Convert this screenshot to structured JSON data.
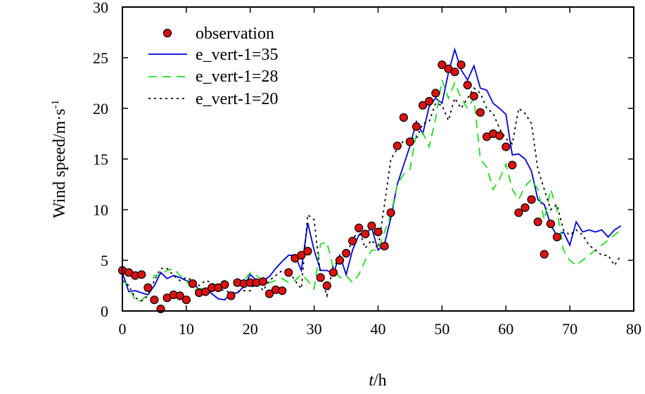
{
  "chart_data": {
    "type": "line",
    "title": "",
    "xlabel_italic": "t",
    "xlabel_unit": "/h",
    "ylabel": "Wind speed/m·s",
    "ylabel_sup": "-1",
    "xlim": [
      0,
      80
    ],
    "ylim": [
      0,
      30
    ],
    "xticks": [
      "0",
      "10",
      "20",
      "30",
      "40",
      "50",
      "60",
      "70",
      "80"
    ],
    "yticks": [
      "0",
      "5",
      "10",
      "15",
      "20",
      "25",
      "30"
    ],
    "grid": false,
    "legend_position": "top-left",
    "colors": {
      "observation_fill": "#dd1111",
      "observation_edge": "#000000",
      "series1": "#0000dd",
      "series2": "#22dd22",
      "series3": "#000000"
    },
    "observation": {
      "name": "observation",
      "x": [
        0,
        1,
        2,
        3,
        4,
        5,
        6,
        7,
        8,
        9,
        10,
        11,
        12,
        13,
        14,
        15,
        16,
        17,
        18,
        19,
        20,
        21,
        22,
        23,
        24,
        25,
        26,
        27,
        28,
        29,
        30,
        31,
        32,
        33,
        34,
        35,
        36,
        37,
        38,
        39,
        40,
        41,
        42,
        43,
        44,
        45,
        46,
        47,
        48,
        49,
        50,
        51,
        52,
        53,
        54,
        55,
        56,
        57,
        58,
        59,
        60,
        61,
        62,
        63,
        64,
        65,
        66,
        67,
        68
      ],
      "y": [
        4.0,
        3.8,
        3.5,
        3.6,
        2.3,
        1.1,
        0.2,
        1.3,
        1.6,
        1.5,
        1.1,
        2.7,
        1.8,
        1.9,
        2.3,
        2.3,
        2.6,
        1.5,
        2.8,
        2.7,
        2.8,
        2.8,
        2.9,
        1.7,
        2.1,
        2.0,
        3.8,
        5.2,
        5.5,
        5.9,
        null,
        3.3,
        2.5,
        3.8,
        5.0,
        5.7,
        6.9,
        8.2,
        7.6,
        8.4,
        7.8,
        6.4,
        9.7,
        16.3,
        19.1,
        16.7,
        18.2,
        20.3,
        20.7,
        21.5,
        24.3,
        23.9,
        23.6,
        24.3,
        22.3,
        21.2,
        19.6,
        17.2,
        17.5,
        17.3,
        16.2,
        14.4,
        9.7,
        10.2,
        11.0,
        8.8,
        5.6,
        8.6,
        7.3
      ]
    },
    "series": [
      {
        "name": "e_vert-1=35",
        "style": "solid",
        "x": [
          0,
          1,
          2,
          3,
          4,
          5,
          6,
          7,
          8,
          9,
          10,
          11,
          12,
          13,
          14,
          15,
          16,
          17,
          18,
          19,
          20,
          21,
          22,
          23,
          24,
          25,
          26,
          27,
          28,
          29,
          30,
          31,
          32,
          33,
          34,
          35,
          36,
          37,
          38,
          39,
          40,
          41,
          42,
          43,
          44,
          45,
          46,
          47,
          48,
          49,
          50,
          51,
          52,
          53,
          54,
          55,
          56,
          57,
          58,
          59,
          60,
          61,
          62,
          63,
          64,
          65,
          66,
          67,
          68,
          69,
          70,
          71,
          72,
          73,
          74,
          75,
          76,
          77,
          78
        ],
        "y": [
          3.8,
          1.9,
          2.0,
          1.8,
          1.6,
          2.5,
          3.8,
          3.2,
          3.5,
          3.3,
          3.0,
          2.8,
          2.1,
          2.2,
          1.7,
          1.2,
          1.1,
          1.7,
          1.8,
          2.4,
          3.6,
          3.0,
          3.0,
          3.4,
          4.2,
          4.9,
          5.5,
          5.5,
          4.0,
          8.7,
          6.0,
          4.0,
          4.0,
          3.7,
          5.5,
          3.6,
          6.0,
          7.5,
          7.6,
          8.2,
          6.0,
          6.6,
          9.2,
          12.5,
          14.4,
          16.3,
          18.7,
          17.5,
          20.2,
          21.0,
          20.5,
          23.5,
          25.8,
          23.8,
          22.8,
          24.2,
          22.0,
          21.8,
          20.5,
          20.0,
          19.4,
          15.4,
          15.5,
          15.0,
          13.8,
          11.0,
          10.5,
          8.5,
          7.4,
          7.8,
          6.5,
          8.8,
          7.8,
          8.0,
          7.8,
          8.0,
          7.3,
          8.0,
          8.4
        ]
      },
      {
        "name": "e_vert-1=28",
        "style": "dashed",
        "x": [
          0,
          1,
          2,
          3,
          4,
          5,
          6,
          7,
          8,
          9,
          10,
          11,
          12,
          13,
          14,
          15,
          16,
          17,
          18,
          19,
          20,
          21,
          22,
          23,
          24,
          25,
          26,
          27,
          28,
          29,
          30,
          31,
          32,
          33,
          34,
          35,
          36,
          37,
          38,
          39,
          40,
          41,
          42,
          43,
          44,
          45,
          46,
          47,
          48,
          49,
          50,
          51,
          52,
          53,
          54,
          55,
          56,
          57,
          58,
          59,
          60,
          61,
          62,
          63,
          64,
          65,
          66,
          67,
          68,
          69,
          70,
          71,
          72,
          73,
          74,
          75,
          76,
          77,
          78
        ],
        "y": [
          3.0,
          2.5,
          1.0,
          1.0,
          1.8,
          3.5,
          3.6,
          4.0,
          4.2,
          3.5,
          3.0,
          2.0,
          2.2,
          2.2,
          2.4,
          2.8,
          3.0,
          2.5,
          2.6,
          3.0,
          3.8,
          3.5,
          3.0,
          2.8,
          3.0,
          3.2,
          2.8,
          3.0,
          3.6,
          3.0,
          2.2,
          6.6,
          6.8,
          4.2,
          3.3,
          3.5,
          2.8,
          3.6,
          5.0,
          6.0,
          6.0,
          7.8,
          9.5,
          12.5,
          13.5,
          14.0,
          17.5,
          17.6,
          16.2,
          19.0,
          22.8,
          21.0,
          22.5,
          21.0,
          20.0,
          21.0,
          15.0,
          14.2,
          12.0,
          13.0,
          14.5,
          12.0,
          11.0,
          12.3,
          13.0,
          12.0,
          9.0,
          12.0,
          10.0,
          6.0,
          5.0,
          4.5,
          5.0,
          5.5,
          6.0,
          6.5,
          7.0,
          7.5,
          8.0
        ]
      },
      {
        "name": "e_vert-1=20",
        "style": "dotted",
        "x": [
          0,
          1,
          2,
          3,
          4,
          5,
          6,
          7,
          8,
          9,
          10,
          11,
          12,
          13,
          14,
          15,
          16,
          17,
          18,
          19,
          20,
          21,
          22,
          23,
          24,
          25,
          26,
          27,
          28,
          29,
          30,
          31,
          32,
          33,
          34,
          35,
          36,
          37,
          38,
          39,
          40,
          41,
          42,
          43,
          44,
          45,
          46,
          47,
          48,
          49,
          50,
          51,
          52,
          53,
          54,
          55,
          56,
          57,
          58,
          59,
          60,
          61,
          62,
          63,
          64,
          65,
          66,
          67,
          68,
          69,
          70,
          71,
          72,
          73,
          74,
          75,
          76,
          77,
          78
        ],
        "y": [
          3.0,
          2.5,
          1.3,
          1.0,
          1.5,
          3.0,
          4.2,
          4.2,
          3.5,
          3.0,
          3.3,
          3.0,
          2.5,
          3.0,
          2.8,
          2.2,
          2.0,
          1.8,
          1.9,
          2.0,
          2.0,
          3.0,
          2.0,
          3.0,
          3.5,
          4.0,
          4.0,
          3.0,
          2.2,
          9.5,
          9.0,
          3.5,
          1.5,
          4.5,
          5.0,
          5.5,
          7.0,
          8.0,
          6.2,
          7.0,
          6.2,
          10.5,
          15.0,
          16.0,
          16.8,
          17.0,
          17.0,
          18.5,
          18.7,
          20.5,
          20.3,
          18.8,
          21.0,
          20.0,
          21.0,
          22.0,
          21.5,
          20.0,
          19.5,
          18.0,
          17.0,
          16.5,
          20.0,
          19.5,
          18.5,
          14.0,
          12.0,
          10.0,
          10.5,
          8.0,
          7.5,
          8.0,
          7.5,
          6.5,
          6.0,
          5.5,
          5.5,
          4.5,
          5.5
        ]
      }
    ]
  }
}
